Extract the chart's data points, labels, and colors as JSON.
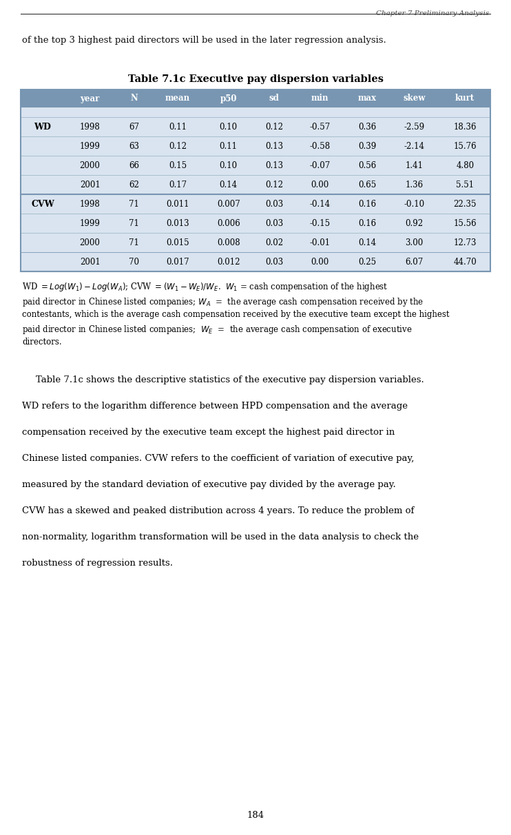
{
  "page_title": "Chapter 7 Preliminary Analysis",
  "top_text": "of the top 3 highest paid directors will be used in the later regression analysis.",
  "table_title": "Table 7.1c Executive pay dispersion variables",
  "col_headers": [
    "",
    "year",
    "N",
    "mean",
    "p50",
    "sd",
    "min",
    "max",
    "skew",
    "kurt"
  ],
  "row_labels": [
    "WD",
    "",
    "",
    "",
    "CVW",
    "",
    "",
    ""
  ],
  "table_data": [
    [
      "1998",
      "67",
      "0.11",
      "0.10",
      "0.12",
      "-0.57",
      "0.36",
      "-2.59",
      "18.36"
    ],
    [
      "1999",
      "63",
      "0.12",
      "0.11",
      "0.13",
      "-0.58",
      "0.39",
      "-2.14",
      "15.76"
    ],
    [
      "2000",
      "66",
      "0.15",
      "0.10",
      "0.13",
      "-0.07",
      "0.56",
      "1.41",
      "4.80"
    ],
    [
      "2001",
      "62",
      "0.17",
      "0.14",
      "0.12",
      "0.00",
      "0.65",
      "1.36",
      "5.51"
    ],
    [
      "1998",
      "71",
      "0.011",
      "0.007",
      "0.03",
      "-0.14",
      "0.16",
      "-0.10",
      "22.35"
    ],
    [
      "1999",
      "71",
      "0.013",
      "0.006",
      "0.03",
      "-0.15",
      "0.16",
      "0.92",
      "15.56"
    ],
    [
      "2000",
      "71",
      "0.015",
      "0.008",
      "0.02",
      "-0.01",
      "0.14",
      "3.00",
      "12.73"
    ],
    [
      "2001",
      "70",
      "0.017",
      "0.012",
      "0.03",
      "0.00",
      "0.25",
      "6.07",
      "44.70"
    ]
  ],
  "header_bg": "#7896b2",
  "row_bg_light": "#d9e4f0",
  "row_bg_white": "#ffffff",
  "separator_color": "#7896b2",
  "grid_color": "#a0b8c8",
  "body_paragraphs": [
    "Table 7.1c shows the descriptive statistics of the executive pay dispersion variables.",
    "WD refers to the logarithm difference between HPD compensation and the average",
    "compensation received by the executive team except the highest paid director in",
    "Chinese listed companies. CVW refers to the coefficient of variation of executive pay,",
    "measured by the standard deviation of executive pay divided by the average pay.",
    "CVW has a skewed and peaked distribution across 4 years. To reduce the problem of",
    "non-normality, logarithm transformation will be used in the data analysis to check the",
    "robustness of regression results."
  ],
  "page_number": "184",
  "bg_color": "#ebebf2",
  "page_bg": "#f0f0f5"
}
